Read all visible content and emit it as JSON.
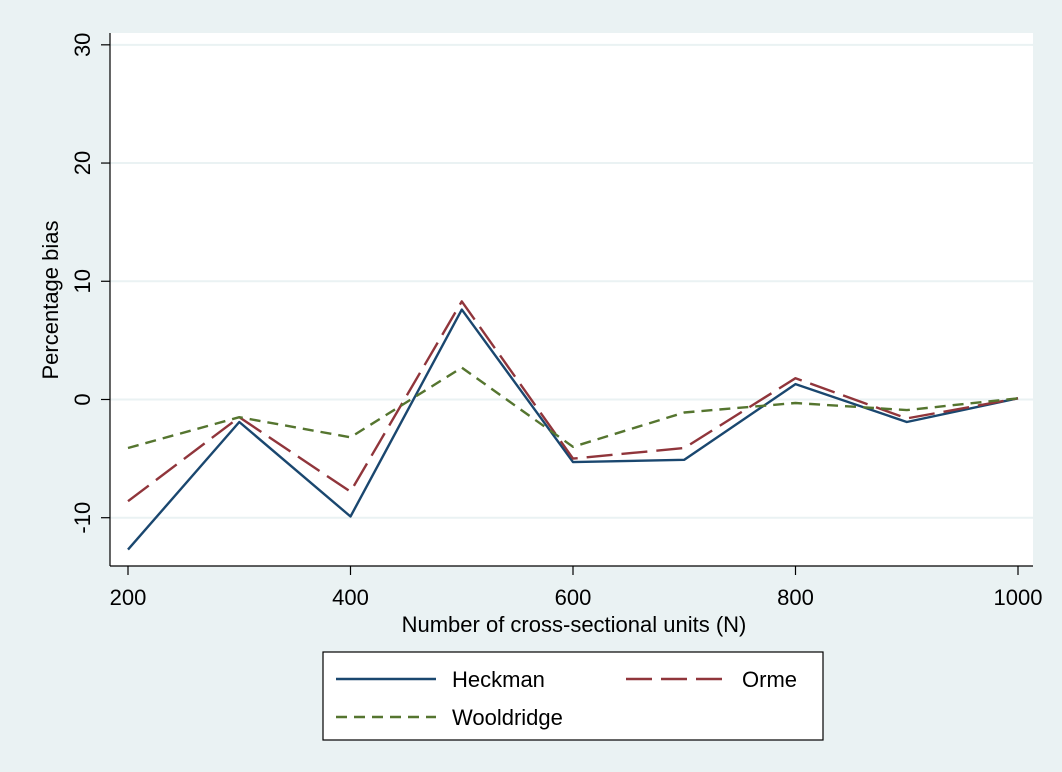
{
  "chart_data": {
    "type": "line",
    "xlabel": "Number of cross-sectional units (N)",
    "ylabel": "Percentage bias",
    "xlim": [
      200,
      1000
    ],
    "ylim": [
      -14,
      31
    ],
    "xticks": [
      200,
      400,
      600,
      800,
      1000
    ],
    "yticks": [
      -10,
      0,
      10,
      20,
      30
    ],
    "x": [
      200,
      300,
      400,
      500,
      600,
      700,
      800,
      900,
      1000
    ],
    "grid": true,
    "legend_position": "bottom",
    "series": [
      {
        "name": "Heckman",
        "color": "#1a476f",
        "dash": "solid",
        "values": [
          -12.7,
          -1.9,
          -9.9,
          7.6,
          -5.3,
          -5.1,
          1.3,
          -1.9,
          0.1
        ]
      },
      {
        "name": "Orme",
        "color": "#90353b",
        "dash": "long-dash",
        "values": [
          -8.6,
          -1.5,
          -7.8,
          8.3,
          -5.0,
          -4.1,
          1.8,
          -1.6,
          0.1
        ]
      },
      {
        "name": "Wooldridge",
        "color": "#55752f",
        "dash": "short-dash",
        "values": [
          -4.1,
          -1.5,
          -3.2,
          2.7,
          -4.0,
          -1.1,
          -0.3,
          -0.9,
          0.1
        ]
      }
    ]
  }
}
